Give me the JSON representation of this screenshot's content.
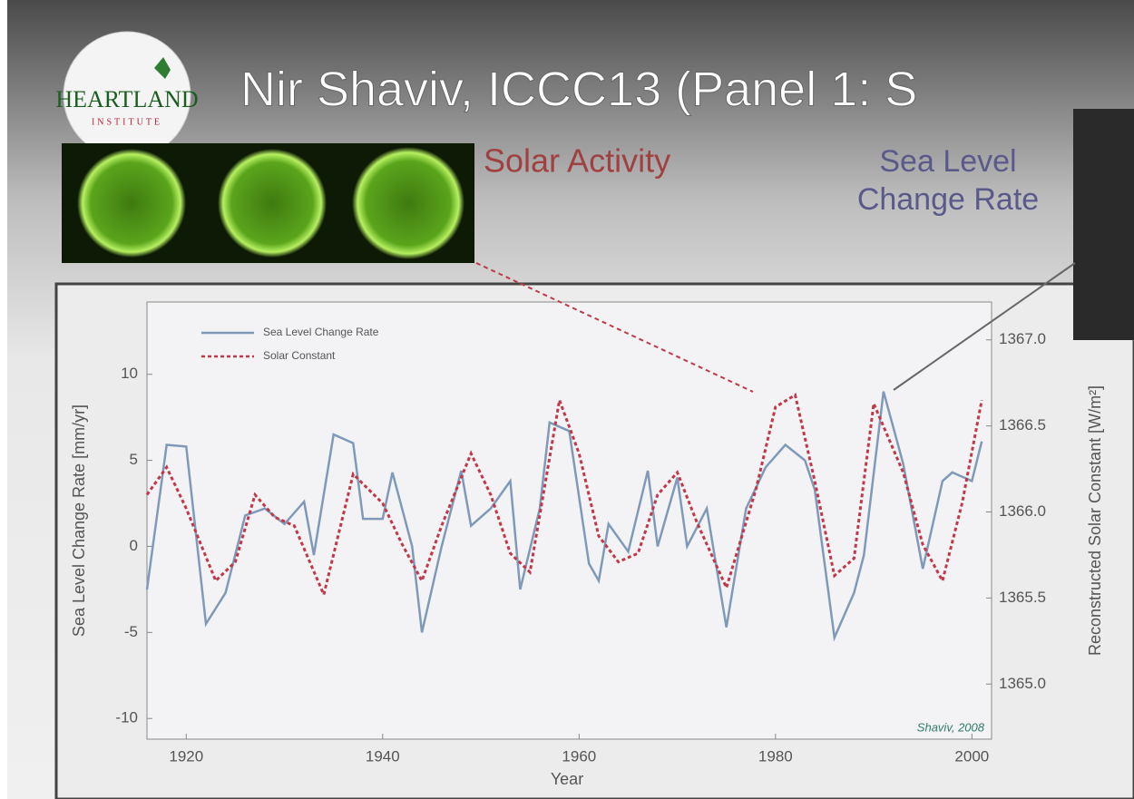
{
  "slide": {
    "title": "Nir Shaviv, ICCC13 (Panel 1: S",
    "logo": "HEARTLAND",
    "logo_sub": "INSTITUTE",
    "label_solar": "Solar Activity",
    "label_sea": [
      "Sea Level",
      "Change Rate"
    ]
  },
  "chart_data": {
    "type": "line",
    "xlabel": "Year",
    "ylabel": "Sea Level Change Rate [mm/yr]",
    "y2label": "Reconstructed Solar Constant [W/m²]",
    "annotation": "Shaviv, 2008",
    "xlim": [
      1916,
      2002
    ],
    "xticks": [
      1920,
      1940,
      1960,
      1980,
      2000
    ],
    "ylim": [
      -11.2,
      14.2
    ],
    "yticks": [
      -10,
      -5,
      0,
      5,
      10
    ],
    "y2lim": [
      1364.68,
      1367.22
    ],
    "y2ticks": [
      {
        "value": 1365,
        "label": "1365.0"
      },
      1365.5,
      {
        "value": 1366,
        "label": "1366.0"
      },
      1366.5,
      {
        "value": 1367,
        "label": "1367.0"
      }
    ],
    "legend": "upper left",
    "series": [
      {
        "name": "Sea Level Change Rate",
        "color": "#7f9ab8",
        "x": [
          1916,
          1918,
          1920,
          1922,
          1924,
          1926,
          1928,
          1930,
          1932,
          1933,
          1935,
          1937,
          1938,
          1940,
          1941,
          1943,
          1944,
          1946,
          1948,
          1949,
          1951,
          1953,
          1954,
          1956,
          1957,
          1959,
          1961,
          1962,
          1963,
          1965,
          1967,
          1968,
          1970,
          1971,
          1973,
          1975,
          1977,
          1979,
          1981,
          1983,
          1984,
          1986,
          1988,
          1989,
          1991,
          1993,
          1995,
          1997,
          1998,
          2000,
          2001
        ],
        "values": [
          -2.5,
          5.9,
          5.8,
          -4.5,
          -2.7,
          1.8,
          2.2,
          1.3,
          2.6,
          -0.5,
          6.5,
          6,
          1.6,
          1.6,
          4.3,
          0,
          -5,
          0,
          4.4,
          1.2,
          2.2,
          3.8,
          -2.5,
          2.2,
          7.2,
          6.7,
          -1,
          -2,
          1.3,
          -0.3,
          4.4,
          0,
          4,
          0,
          2.2,
          -4.7,
          2.2,
          4.6,
          5.9,
          5,
          3.3,
          -5.3,
          -2.7,
          -0.5,
          9,
          4.8,
          -1.3,
          3.8,
          4.3,
          3.8,
          6.1
        ]
      },
      {
        "name": "Solar Constant",
        "color": "#c0394a",
        "axis": "y2",
        "x": [
          1916,
          1918,
          1920,
          1923,
          1925,
          1927,
          1929,
          1931,
          1934,
          1937,
          1940,
          1942,
          1944,
          1946,
          1949,
          1951,
          1953,
          1955,
          1958,
          1960,
          1962,
          1964,
          1966,
          1968,
          1970,
          1972,
          1975,
          1978,
          1980,
          1982,
          1984,
          1986,
          1988,
          1990,
          1993,
          1995,
          1997,
          1999,
          2001
        ],
        "values": [
          1366.1,
          1366.26,
          1366.02,
          1365.6,
          1365.71,
          1366.1,
          1365.97,
          1365.92,
          1365.52,
          1366.22,
          1366.05,
          1365.81,
          1365.6,
          1365.92,
          1366.34,
          1366.1,
          1365.76,
          1365.65,
          1366.65,
          1366.34,
          1365.86,
          1365.71,
          1365.76,
          1366.1,
          1366.23,
          1365.94,
          1365.56,
          1366.13,
          1366.61,
          1366.68,
          1366.18,
          1365.63,
          1365.73,
          1366.63,
          1366.23,
          1365.81,
          1365.6,
          1366.05,
          1366.65
        ]
      }
    ]
  }
}
